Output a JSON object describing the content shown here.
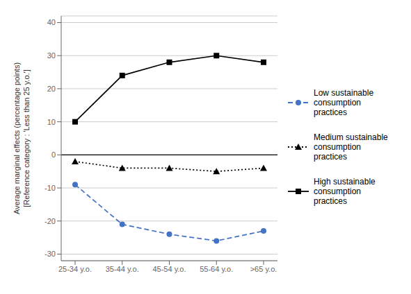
{
  "chart_data": {
    "type": "line",
    "categories": [
      "25-34 y.o.",
      "35-44 y.o.",
      "45-54 y.o.",
      "55-64 y.o.",
      ">65 y.o."
    ],
    "series": [
      {
        "name": "Low sustainable\nconsumption\npractices",
        "color": "#4472C4",
        "values": [
          -9,
          -21,
          -24,
          -26,
          -23
        ],
        "marker": "circle",
        "line_style": "dashed"
      },
      {
        "name": "Medium sustainable\nconsumption\npractices",
        "color": "#000000",
        "values": [
          -2,
          -4,
          -4,
          -5,
          -4
        ],
        "marker": "triangle",
        "line_style": "dotted"
      },
      {
        "name": "High sustainable\nconsumption\npractices",
        "color": "#000000",
        "values": [
          10,
          24,
          28,
          30,
          28
        ],
        "marker": "square",
        "line_style": "solid"
      }
    ],
    "y_label": "Average marginal effects (percentage points)\n[Reference category : 'Less than 25 y.o.']",
    "ylim": [
      -32,
      42
    ],
    "yticks": [
      -30,
      -20,
      -10,
      0,
      10,
      20,
      30,
      40
    ],
    "hline": 0,
    "grid": true,
    "legend": "right"
  }
}
